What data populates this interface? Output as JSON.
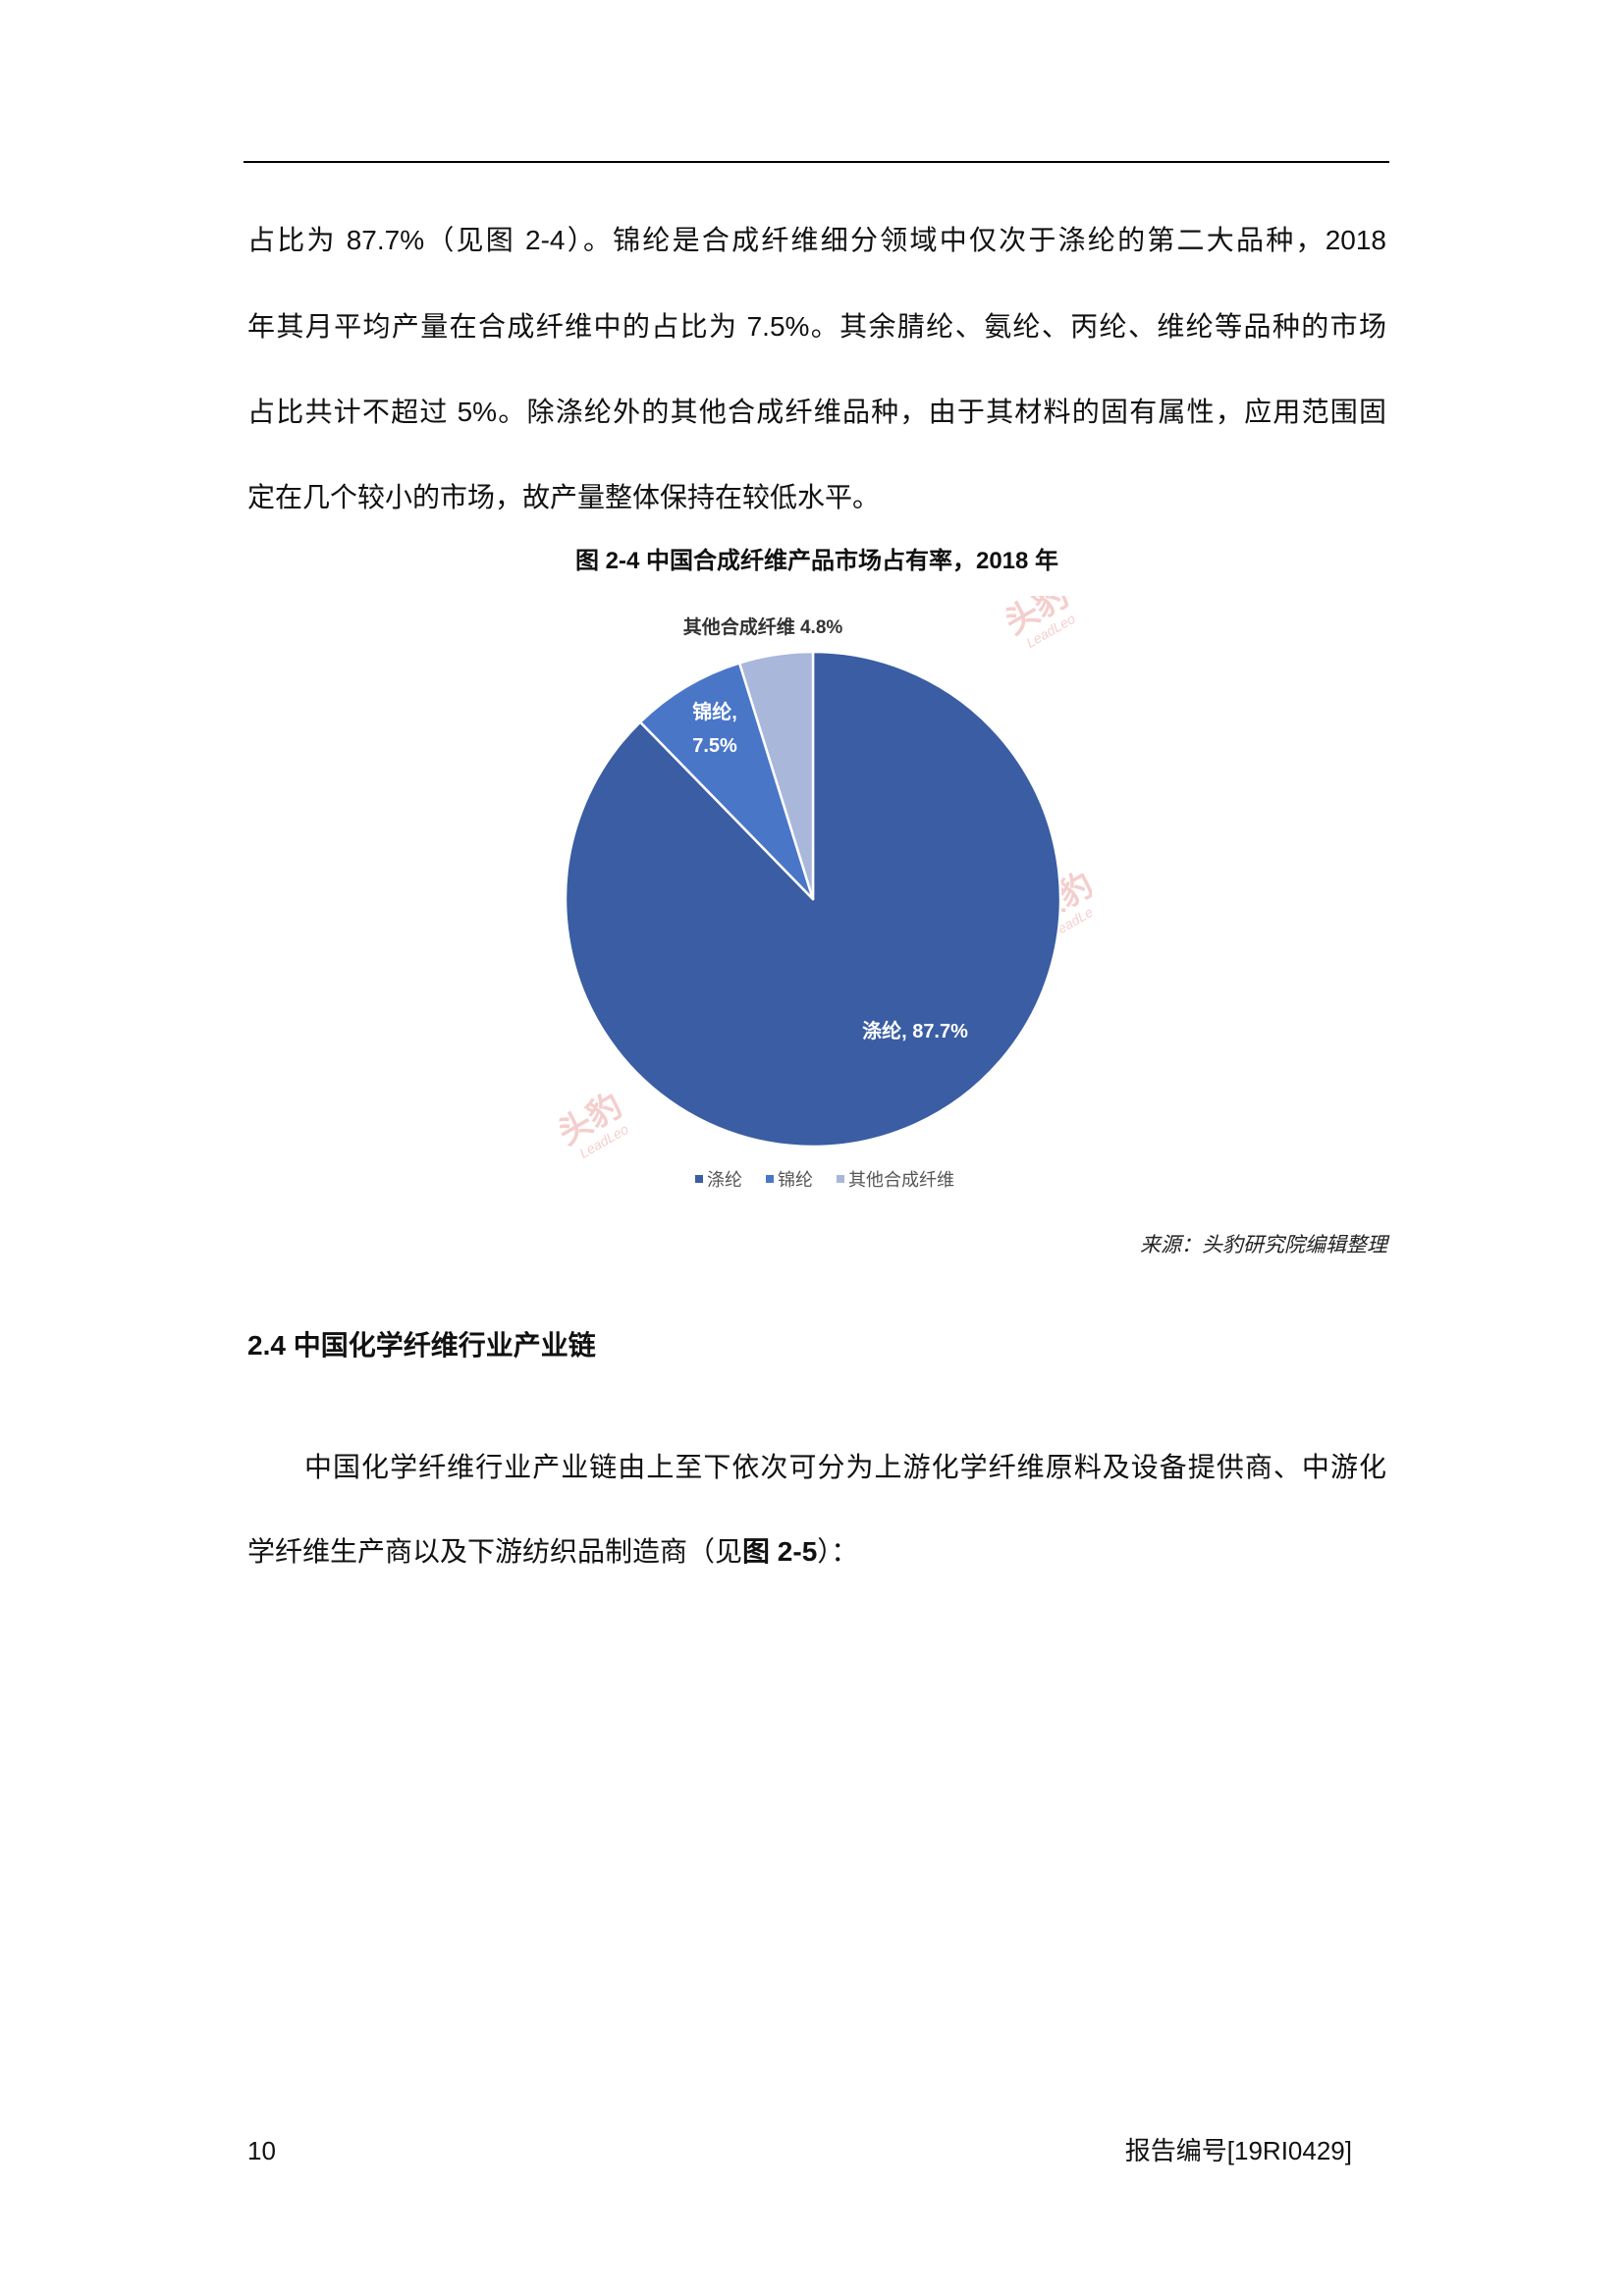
{
  "body": {
    "paragraph1_lines": [
      "占比为 87.7%（见图 2-4）。锦纶是合成纤维细分领域中仅次于涤纶的第二大品种，2018",
      "年其月平均产量在合成纤维中的占比为 7.5%。其余腈纶、氨纶、丙纶、维纶等品种的市场",
      "占比共计不超过 5%。除涤纶外的其他合成纤维品种，由于其材料的固有属性，应用范围固",
      "定在几个较小的市场，故产量整体保持在较低水平。"
    ]
  },
  "figure": {
    "title": "图 2-4 中国合成纤维产品市场占有率，2018 年",
    "source": "来源：头豹研究院编辑整理"
  },
  "chart_data": {
    "type": "pie",
    "categories": [
      "涤纶",
      "锦纶",
      "其他合成纤维"
    ],
    "values": [
      87.7,
      7.5,
      4.8
    ],
    "unit": "%",
    "data_labels": [
      [
        "涤纶, 87.7%"
      ],
      [
        "锦纶,",
        "7.5%"
      ],
      [
        "其他合成纤维  4.8%"
      ]
    ],
    "colors": [
      "#3A5DA3",
      "#4A76C8",
      "#A9B7DB"
    ],
    "legend_position": "bottom"
  },
  "watermark": {
    "cn": "头豹",
    "en": "LeadLeo"
  },
  "section": {
    "heading": "2.4 中国化学纤维行业产业链",
    "line1": "中国化学纤维行业产业链由上至下依次可分为上游化学纤维原料及设备提供商、中游化",
    "line2_parts": [
      "学纤维生产商以及下游纺织品制造商（见",
      "图 2-5",
      "）："
    ]
  },
  "footer": {
    "page_number": "10",
    "report_id": "报告编号[19RI0429]"
  }
}
